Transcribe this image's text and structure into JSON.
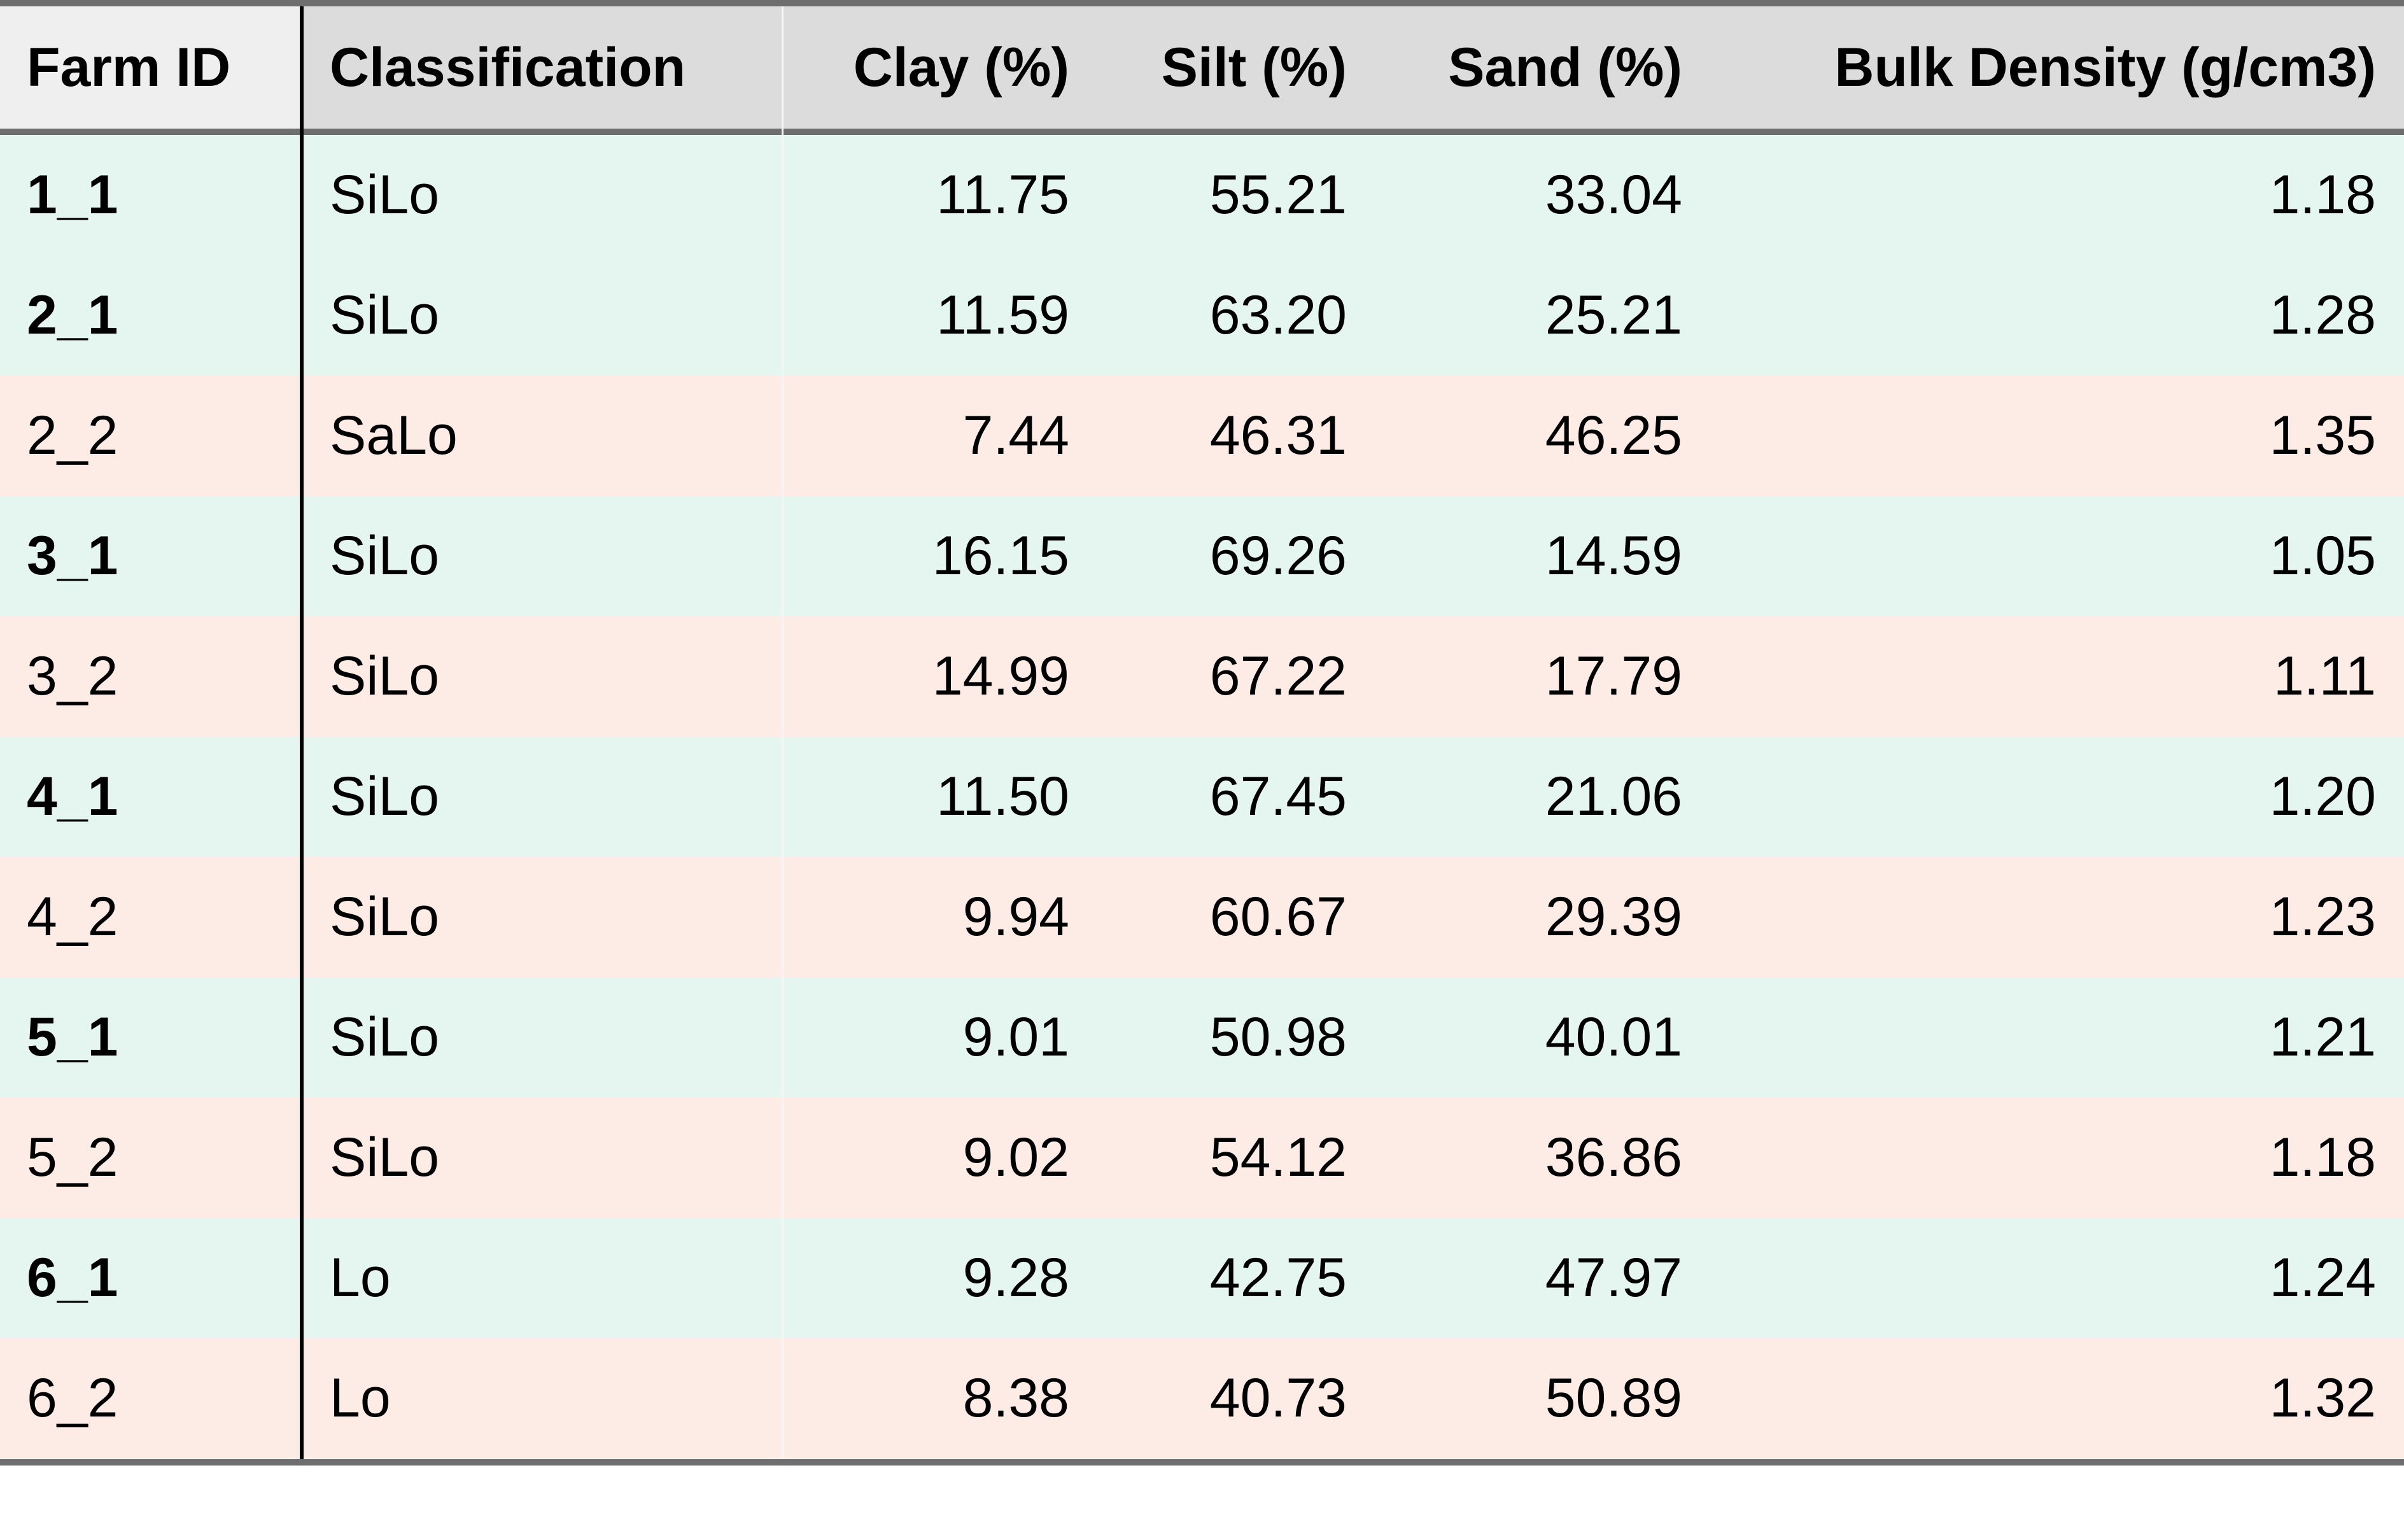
{
  "table": {
    "headers": {
      "farm_id": "Farm ID",
      "classification": "Classification",
      "clay": "Clay (%)",
      "silt": "Silt (%)",
      "sand": "Sand (%)",
      "bulk_density": "Bulk Density (g/cm3)"
    },
    "rows": [
      {
        "farm_id": "1_1",
        "classification": "SiLo",
        "clay": "11.75",
        "silt": "55.21",
        "sand": "33.04",
        "bulk_density": "1.18",
        "highlight": "green",
        "bold": true
      },
      {
        "farm_id": "2_1",
        "classification": "SiLo",
        "clay": "11.59",
        "silt": "63.20",
        "sand": "25.21",
        "bulk_density": "1.28",
        "highlight": "green",
        "bold": true
      },
      {
        "farm_id": "2_2",
        "classification": "SaLo",
        "clay": "7.44",
        "silt": "46.31",
        "sand": "46.25",
        "bulk_density": "1.35",
        "highlight": "pink",
        "bold": false
      },
      {
        "farm_id": "3_1",
        "classification": "SiLo",
        "clay": "16.15",
        "silt": "69.26",
        "sand": "14.59",
        "bulk_density": "1.05",
        "highlight": "green",
        "bold": true
      },
      {
        "farm_id": "3_2",
        "classification": "SiLo",
        "clay": "14.99",
        "silt": "67.22",
        "sand": "17.79",
        "bulk_density": "1.11",
        "highlight": "pink",
        "bold": false
      },
      {
        "farm_id": "4_1",
        "classification": "SiLo",
        "clay": "11.50",
        "silt": "67.45",
        "sand": "21.06",
        "bulk_density": "1.20",
        "highlight": "green",
        "bold": true
      },
      {
        "farm_id": "4_2",
        "classification": "SiLo",
        "clay": "9.94",
        "silt": "60.67",
        "sand": "29.39",
        "bulk_density": "1.23",
        "highlight": "pink",
        "bold": false
      },
      {
        "farm_id": "5_1",
        "classification": "SiLo",
        "clay": "9.01",
        "silt": "50.98",
        "sand": "40.01",
        "bulk_density": "1.21",
        "highlight": "green",
        "bold": true
      },
      {
        "farm_id": "5_2",
        "classification": "SiLo",
        "clay": "9.02",
        "silt": "54.12",
        "sand": "36.86",
        "bulk_density": "1.18",
        "highlight": "pink",
        "bold": false
      },
      {
        "farm_id": "6_1",
        "classification": "Lo",
        "clay": "9.28",
        "silt": "42.75",
        "sand": "47.97",
        "bulk_density": "1.24",
        "highlight": "green",
        "bold": true
      },
      {
        "farm_id": "6_2",
        "classification": "Lo",
        "clay": "8.38",
        "silt": "40.73",
        "sand": "50.89",
        "bulk_density": "1.32",
        "highlight": "pink",
        "bold": false
      }
    ]
  },
  "colors": {
    "green_row": "#e5f5ef",
    "pink_row": "#fdece5",
    "header_bg": "#dcdcdc",
    "rule": "#6e6e6e"
  }
}
